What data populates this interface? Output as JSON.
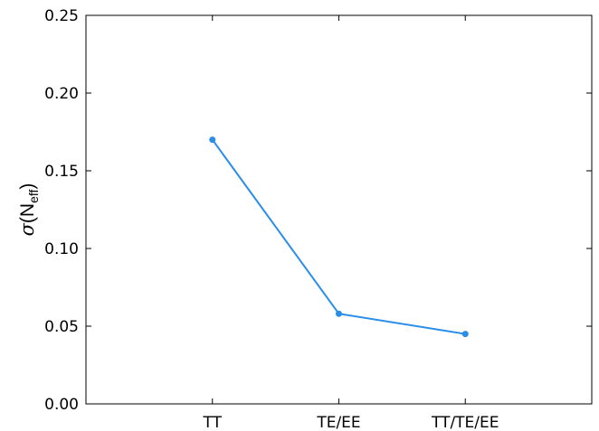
{
  "chart_data": {
    "type": "line",
    "categories": [
      "TT",
      "TE/EE",
      "TT/TE/EE"
    ],
    "series": [
      {
        "values": [
          0.17,
          0.058,
          0.045
        ],
        "color": "#2a8ee8"
      }
    ],
    "ylabel": {
      "symbol": "σ",
      "open": "(N",
      "subscript": "eff",
      "close": ")"
    },
    "ylim": [
      0.0,
      0.25
    ],
    "yticks": [
      "0.00",
      "0.05",
      "0.10",
      "0.15",
      "0.20",
      "0.25"
    ],
    "grid": false,
    "legend": "none"
  }
}
